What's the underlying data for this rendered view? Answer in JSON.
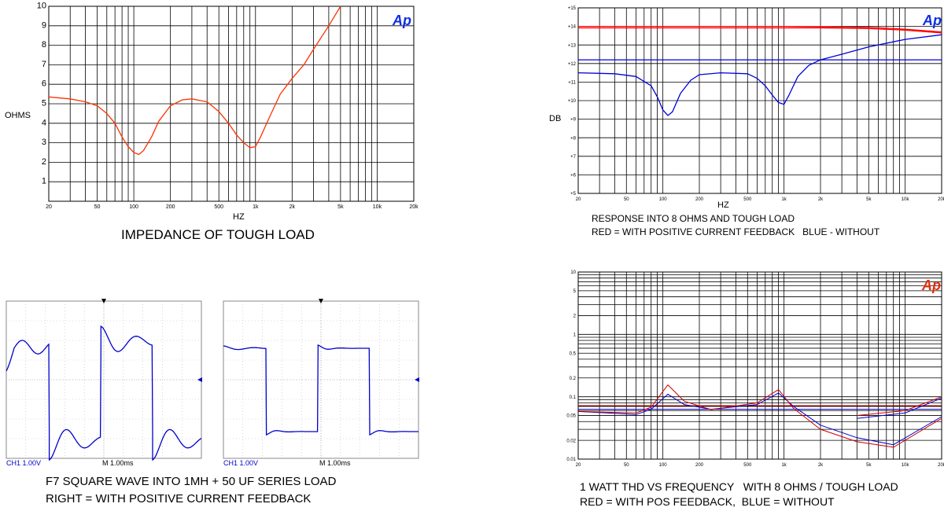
{
  "panels": {
    "impedance": {
      "caption": "IMPEDANCE OF TOUGH LOAD",
      "logo": "Ap",
      "chart_data": {
        "type": "line",
        "xscale": "log",
        "xlabel": "HZ",
        "ylabel": "OHMS",
        "xlim": [
          20,
          20000
        ],
        "ylim": [
          0,
          10
        ],
        "x_ticks": [
          "20",
          "50",
          "100",
          "200",
          "500",
          "1k",
          "2k",
          "5k",
          "10k",
          "20k"
        ],
        "y_ticks": [
          "1",
          "2",
          "3",
          "4",
          "5",
          "6",
          "7",
          "8",
          "9",
          "10"
        ],
        "series": [
          {
            "color": "#ff3300",
            "x": [
              20,
              30,
              40,
              50,
              60,
              70,
              80,
              90,
              100,
              110,
              120,
              140,
              160,
              200,
              250,
              300,
              400,
              500,
              600,
              700,
              800,
              900,
              1000,
              1100,
              1300,
              1600,
              2000,
              2500,
              3000,
              4000,
              5000
            ],
            "y": [
              5.35,
              5.25,
              5.1,
              4.9,
              4.5,
              4.0,
              3.3,
              2.8,
              2.5,
              2.4,
              2.6,
              3.3,
              4.1,
              4.9,
              5.2,
              5.25,
              5.1,
              4.6,
              4.0,
              3.4,
              3.0,
              2.75,
              2.8,
              3.3,
              4.3,
              5.5,
              6.3,
              7.0,
              7.8,
              9.0,
              10.0
            ]
          }
        ]
      }
    },
    "response": {
      "caption_line1": "RESPONSE INTO 8 OHMS AND TOUGH LOAD",
      "caption_line2": "RED = WITH POSITIVE CURRENT FEEDBACK   BLUE - WITHOUT",
      "logo": "Ap",
      "chart_data": {
        "type": "line",
        "xscale": "log",
        "xlabel": "HZ",
        "ylabel": "DB",
        "xlim": [
          20,
          20000
        ],
        "ylim": [
          5,
          15
        ],
        "x_ticks": [
          "20",
          "50",
          "100",
          "200",
          "500",
          "1k",
          "2k",
          "5k",
          "10k",
          "20k"
        ],
        "y_ticks": [
          "+5",
          "+6",
          "+7",
          "+8",
          "+9",
          "+10",
          "+11",
          "+12",
          "+13",
          "+14",
          "+15"
        ],
        "series": [
          {
            "color": "#ff0000",
            "x": [
              20,
              1000,
              5000,
              10000,
              20000
            ],
            "y": [
              14.0,
              14.0,
              13.95,
              13.85,
              13.7
            ]
          },
          {
            "color": "#ff0000",
            "x": [
              20,
              2000,
              5000,
              10000,
              20000
            ],
            "y": [
              13.92,
              13.92,
              13.88,
              13.8,
              13.65
            ]
          },
          {
            "color": "#0000dd",
            "x": [
              20,
              20000
            ],
            "y": [
              12.2,
              12.2
            ]
          },
          {
            "color": "#0000dd",
            "x": [
              20,
              40,
              60,
              80,
              90,
              100,
              110,
              120,
              140,
              170,
              200,
              300,
              500,
              600,
              700,
              800,
              900,
              1000,
              1100,
              1300,
              1600,
              2000,
              3000,
              5000,
              10000,
              20000
            ],
            "y": [
              11.5,
              11.45,
              11.3,
              10.8,
              10.2,
              9.5,
              9.2,
              9.4,
              10.4,
              11.1,
              11.4,
              11.5,
              11.45,
              11.2,
              10.8,
              10.3,
              9.9,
              9.8,
              10.3,
              11.3,
              11.9,
              12.2,
              12.5,
              12.9,
              13.3,
              13.55
            ]
          }
        ]
      }
    },
    "thd": {
      "caption_line1": "1 WATT THD VS FREQUENCY   WITH 8 OHMS / TOUGH LOAD",
      "caption_line2": "RED = WITH POS FEEDBACK,  BLUE = WITHOUT",
      "logo": "Ap",
      "chart_data": {
        "type": "line",
        "xscale": "log",
        "yscale": "log",
        "xlim": [
          20,
          20000
        ],
        "ylim": [
          0.01,
          10
        ],
        "x_ticks": [
          "20",
          "50",
          "100",
          "200",
          "500",
          "1k",
          "2k",
          "5k",
          "10k",
          "20k"
        ],
        "y_ticks": [
          "0.01",
          "0.02",
          "0.05",
          "0.1",
          "0.2",
          "0.5",
          "1",
          "2",
          "5",
          "10"
        ],
        "series": [
          {
            "color": "#cc0000",
            "x": [
              20,
              200,
              1000,
              20000
            ],
            "y": [
              0.072,
              0.072,
              0.072,
              0.072
            ]
          },
          {
            "color": "#0000cc",
            "x": [
              20,
              1000,
              20000
            ],
            "y": [
              0.063,
              0.063,
              0.063
            ]
          },
          {
            "color": "#0000cc",
            "x": [
              20,
              60,
              80,
              110,
              150,
              250,
              600,
              900,
              1200,
              2000,
              4000,
              8000,
              20000
            ],
            "y": [
              0.058,
              0.052,
              0.063,
              0.11,
              0.075,
              0.063,
              0.075,
              0.115,
              0.07,
              0.035,
              0.022,
              0.017,
              0.048
            ]
          },
          {
            "color": "#cc0000",
            "x": [
              20,
              60,
              80,
              110,
              150,
              250,
              600,
              900,
              1200,
              2000,
              4000,
              8000,
              20000
            ],
            "y": [
              0.058,
              0.055,
              0.068,
              0.155,
              0.085,
              0.062,
              0.08,
              0.13,
              0.065,
              0.03,
              0.019,
              0.0155,
              0.045
            ]
          },
          {
            "color": "#0000cc",
            "x": [
              4000,
              10000,
              20000
            ],
            "y": [
              0.045,
              0.055,
              0.095
            ]
          },
          {
            "color": "#cc0000",
            "x": [
              4000,
              10000,
              20000
            ],
            "y": [
              0.05,
              0.06,
              0.1
            ]
          }
        ]
      }
    },
    "scope": {
      "caption_line1": "F7 SQUARE WAVE INTO 1MH + 50 UF SERIES LOAD",
      "caption_line2": "RIGHT = WITH POSITIVE CURRENT FEEDBACK",
      "left_readout_ch": "CH1  1.00V",
      "left_readout_m": "M 1.00ms",
      "right_readout_ch": "CH1  1.00V",
      "right_readout_m": "M 1.00ms",
      "trace_color": "#0000cc"
    }
  }
}
